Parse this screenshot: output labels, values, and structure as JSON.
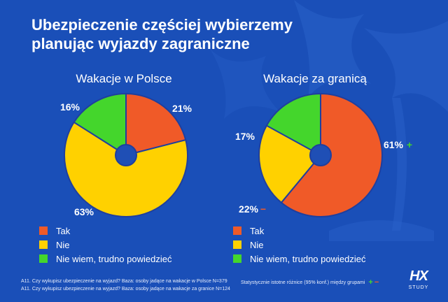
{
  "title": "Ubezpieczenie częściej wybierzemy planując wyjazdy zagraniczne",
  "colors": {
    "tak": "#f05a28",
    "nie": "#ffd100",
    "nie_wiem": "#44d62c",
    "background": "#1a4fb8",
    "center_hole": "#1f4fb5",
    "stroke": "#1f3f9e"
  },
  "chart_data": [
    {
      "type": "pie",
      "title": "Wakacje w Polsce",
      "categories": [
        "Tak",
        "Nie",
        "Nie wiem, trudno powiedzieć"
      ],
      "values": [
        21,
        63,
        16
      ],
      "labels": [
        "21%",
        "63%",
        "16%"
      ],
      "significance": [
        "",
        "",
        ""
      ]
    },
    {
      "type": "pie",
      "title": "Wakacje za granicą",
      "categories": [
        "Tak",
        "Nie",
        "Nie wiem, trudno powiedzieć"
      ],
      "values": [
        61,
        22,
        17
      ],
      "labels": [
        "61%",
        "22%",
        "17%"
      ],
      "significance": [
        "+",
        "−",
        ""
      ]
    }
  ],
  "legend": {
    "items": [
      {
        "label": "Tak",
        "color": "#f05a28"
      },
      {
        "label": "Nie",
        "color": "#ffd100"
      },
      {
        "label": "Nie wiem, trudno powiedzieć",
        "color": "#44d62c"
      }
    ]
  },
  "footnotes": [
    "A11. Czy wykupisz ubezpieczenie na wyjazd? Baza: osoby jadące na wakacje w Polsce N=379",
    "A11. Czy wykupisz ubezpieczenie na wyjazd? Baza: osoby jadące na wakacje za granice N=124"
  ],
  "significance_note": "Statystycznie istotne różnice (95% konf.) między grupami",
  "significance_plus": "+",
  "significance_minus": "−",
  "logo": {
    "main": "HX",
    "sub": "STUDY"
  }
}
